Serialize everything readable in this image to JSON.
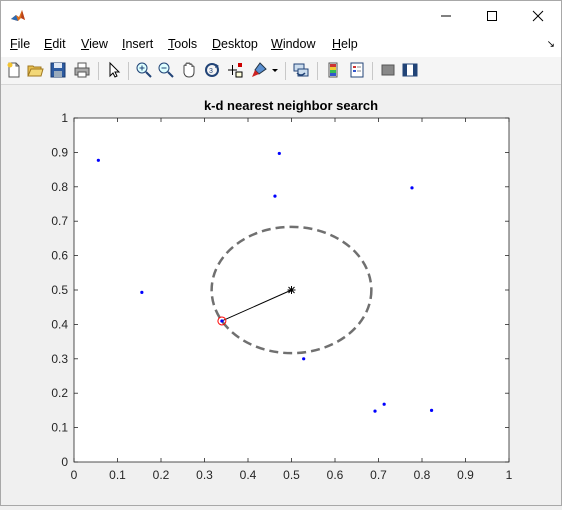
{
  "window": {
    "minimize_glyph": "—",
    "maximize_glyph": "☐",
    "close_glyph": "✕"
  },
  "menu": {
    "items": [
      {
        "label": "File",
        "mnemonic": "F",
        "rest": "ile"
      },
      {
        "label": "Edit",
        "mnemonic": "E",
        "rest": "dit"
      },
      {
        "label": "View",
        "mnemonic": "V",
        "rest": "iew"
      },
      {
        "label": "Insert",
        "mnemonic": "I",
        "rest": "nsert"
      },
      {
        "label": "Tools",
        "mnemonic": "T",
        "rest": "ools"
      },
      {
        "label": "Desktop",
        "mnemonic": "D",
        "rest": "esktop"
      },
      {
        "label": "Window",
        "mnemonic": "W",
        "rest": "indow"
      },
      {
        "label": "Help",
        "mnemonic": "H",
        "rest": "elp"
      }
    ],
    "overflow_glyph": "↘"
  },
  "toolbar": {
    "icons": [
      "new-figure-icon",
      "open-file-icon",
      "save-icon",
      "print-icon",
      "select-arrow-icon",
      "zoom-in-icon",
      "zoom-out-icon",
      "pan-hand-icon",
      "rotate-3d-icon",
      "data-cursor-icon",
      "brush-icon",
      "link-plot-icon",
      "colorbar-icon",
      "legend-icon",
      "hide-plot-tools-icon",
      "show-plot-tools-icon"
    ]
  },
  "chart_data": {
    "type": "scatter",
    "title": "k-d nearest neighbor search",
    "xlim": [
      0,
      1
    ],
    "ylim": [
      0,
      1
    ],
    "xticks": [
      "0",
      "0.1",
      "0.2",
      "0.3",
      "0.4",
      "0.5",
      "0.6",
      "0.7",
      "0.8",
      "0.9",
      "1"
    ],
    "yticks": [
      "0",
      "0.1",
      "0.2",
      "0.3",
      "0.4",
      "0.5",
      "0.6",
      "0.7",
      "0.8",
      "0.9",
      "1"
    ],
    "grid": false,
    "points": [
      {
        "x": 0.056,
        "y": 0.877
      },
      {
        "x": 0.472,
        "y": 0.897
      },
      {
        "x": 0.462,
        "y": 0.773
      },
      {
        "x": 0.777,
        "y": 0.797
      },
      {
        "x": 0.156,
        "y": 0.493
      },
      {
        "x": 0.528,
        "y": 0.3
      },
      {
        "x": 0.713,
        "y": 0.168
      },
      {
        "x": 0.692,
        "y": 0.148
      },
      {
        "x": 0.822,
        "y": 0.15
      }
    ],
    "point_color": "#0000ff",
    "query": {
      "x": 0.5,
      "y": 0.5
    },
    "nearest": {
      "x": 0.34,
      "y": 0.41
    },
    "search_radius": 0.1836,
    "circle_color": "#707070",
    "nearest_marker_color": "#ff0000"
  }
}
